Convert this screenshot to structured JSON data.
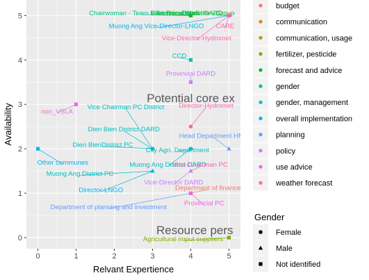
{
  "chart_data": {
    "type": "scatter",
    "xlabel": "Relvant Expertience",
    "ylabel": "Availability",
    "xlim": [
      -0.3,
      5.3
    ],
    "ylim": [
      -0.25,
      5.35
    ],
    "x_ticks": [
      "0",
      "1",
      "2",
      "3",
      "4",
      "5"
    ],
    "y_ticks": [
      "0",
      "1",
      "2",
      "3",
      "4",
      "5"
    ],
    "grid": true,
    "legend_position": "right",
    "color_legend": [
      {
        "name": "budget",
        "color": "#F8766D"
      },
      {
        "name": "communication",
        "color": "#DE8C00"
      },
      {
        "name": "communication, usage",
        "color": "#B79F00"
      },
      {
        "name": "fertilizer, pesticide",
        "color": "#7CAE00"
      },
      {
        "name": "forecast and advice",
        "color": "#00BA38"
      },
      {
        "name": "gender",
        "color": "#00C08B"
      },
      {
        "name": "gender, management",
        "color": "#00BFC4"
      },
      {
        "name": "overall implementation",
        "color": "#00B4F0"
      },
      {
        "name": "planning",
        "color": "#619CFF"
      },
      {
        "name": "policy",
        "color": "#C77CFF"
      },
      {
        "name": "use advice",
        "color": "#F564E3"
      },
      {
        "name": "weather forecast",
        "color": "#FF64B0"
      }
    ],
    "shape_legend_title": "Gender",
    "shape_legend": [
      {
        "name": "Female",
        "shape": "circle"
      },
      {
        "name": "Male",
        "shape": "triangle"
      },
      {
        "name": "Not identified",
        "shape": "square"
      }
    ],
    "annotations": [
      {
        "text": "Potential core ex",
        "x": 2.85,
        "y": 3.05
      },
      {
        "text": "Resource pers",
        "x": 3.1,
        "y": 0.08
      }
    ],
    "points": [
      {
        "label": "Chairwoman - Team leader in village",
        "x": 4,
        "y": 5,
        "topic": "gender",
        "shape": "circle",
        "lx": 2.75,
        "ly": 5.06
      },
      {
        "label": "Technical Staff",
        "x": 4,
        "y": 5,
        "topic": "forecast and advice",
        "shape": "circle",
        "lx": 3.65,
        "ly": 5.06
      },
      {
        "label": "Dien Bien District DARD",
        "x": 4,
        "y": 5,
        "topic": "forecast and advice",
        "shape": "square",
        "lx": 3.9,
        "ly": 5.06
      },
      {
        "label": "Leader - Group",
        "x": 5,
        "y": 5,
        "topic": "forecast and advice",
        "shape": "circle",
        "lx": 4.55,
        "ly": 5.06
      },
      {
        "label": "Muong Ang Vice-Director-LNGO",
        "x": 5,
        "y": 5,
        "topic": "overall implementation",
        "shape": "circle",
        "lx": 3.1,
        "ly": 4.77
      },
      {
        "label": "CARE",
        "x": 5,
        "y": 5,
        "topic": "weather forecast",
        "shape": "square",
        "lx": 4.9,
        "ly": 4.77
      },
      {
        "label": "Vice-Director-Hydromet",
        "x": 5,
        "y": 5,
        "topic": "weather forecast",
        "shape": "circle",
        "lx": 4.15,
        "ly": 4.5
      },
      {
        "label": "CCD",
        "x": 4,
        "y": 4,
        "topic": "gender, management",
        "shape": "square",
        "lx": 3.7,
        "ly": 4.1
      },
      {
        "label": "Provinvial DARD",
        "x": 4,
        "y": 3.5,
        "topic": "policy",
        "shape": "square",
        "lx": 4.0,
        "ly": 3.7
      },
      {
        "label": "Director-Hydromet",
        "x": 4,
        "y": 2.5,
        "topic": "weather forecast",
        "shape": "circle",
        "lx": 4.4,
        "ly": 2.98
      },
      {
        "label": "non_VSLA",
        "x": 1,
        "y": 3,
        "topic": "use advice",
        "shape": "square",
        "lx": 0.5,
        "ly": 2.85
      },
      {
        "label": "Vice Chairman PC District",
        "x": 3,
        "y": 2,
        "topic": "gender, management",
        "shape": "circle",
        "lx": 2.3,
        "ly": 2.95
      },
      {
        "label": "Dien Bien District DARD",
        "x": 3,
        "y": 2,
        "topic": "gender, management",
        "shape": "circle",
        "lx": 2.25,
        "ly": 2.45
      },
      {
        "label": "Dien BienDistrict PC",
        "x": 3,
        "y": 2,
        "topic": "gender, management",
        "shape": "circle",
        "lx": 1.7,
        "ly": 2.1
      },
      {
        "label": "City Agri. Department",
        "x": 4,
        "y": 2,
        "topic": "gender, management",
        "shape": "circle",
        "lx": 3.65,
        "ly": 1.98
      },
      {
        "label": "Head Department HMA",
        "x": 5,
        "y": 2,
        "topic": "planning",
        "shape": "triangle",
        "lx": 4.6,
        "ly": 2.3
      },
      {
        "label": "Other communes",
        "x": 0,
        "y": 2,
        "topic": "overall implementation",
        "shape": "square",
        "lx": 0.65,
        "ly": 1.7
      },
      {
        "label": "Muong Ang District DARD",
        "x": 4,
        "y": 2,
        "topic": "gender, management",
        "shape": "circle",
        "lx": 3.4,
        "ly": 1.65
      },
      {
        "label": "Vice-Chairman PC",
        "x": 4,
        "y": 1.5,
        "topic": "weather forecast",
        "shape": "triangle",
        "lx": 4.25,
        "ly": 1.65
      },
      {
        "label": "Muong Ang District PC",
        "x": 3,
        "y": 1.5,
        "topic": "gender, management",
        "shape": "triangle",
        "lx": 1.1,
        "ly": 1.45
      },
      {
        "label": "Vice-Director DARD",
        "x": 4,
        "y": 1.5,
        "topic": "policy",
        "shape": "triangle",
        "lx": 3.55,
        "ly": 1.25
      },
      {
        "label": "Director-LNGO",
        "x": 3,
        "y": 1.5,
        "topic": "overall implementation",
        "shape": "triangle",
        "lx": 1.65,
        "ly": 1.08
      },
      {
        "label": "Department of finance",
        "x": 4,
        "y": 1,
        "topic": "budget",
        "shape": "square",
        "lx": 4.45,
        "ly": 1.13
      },
      {
        "label": "Department of planning and investment",
        "x": 4,
        "y": 1,
        "topic": "planning",
        "shape": "square",
        "lx": 1.85,
        "ly": 0.7
      },
      {
        "label": "Provincial PC",
        "x": 4,
        "y": 1,
        "topic": "use advice",
        "shape": "square",
        "lx": 4.35,
        "ly": 0.78
      },
      {
        "label": "Agricultural imput suppliers",
        "x": 5,
        "y": 0,
        "topic": "fertilizer, pesticide",
        "shape": "square",
        "lx": 3.8,
        "ly": -0.02
      }
    ]
  }
}
